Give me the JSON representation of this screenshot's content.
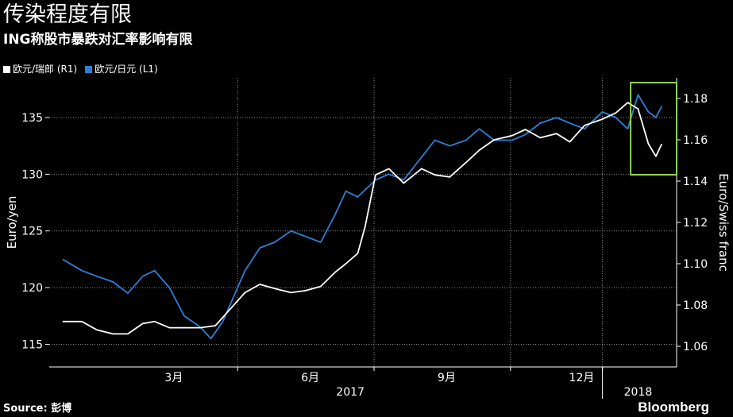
{
  "title": "传染程度有限",
  "subtitle": "ING称股市暴跌对汇率影响有限",
  "source": "Source: 彭博",
  "brand": "Bloomberg",
  "colors": {
    "background": "#000000",
    "chf_series": "#ffffff",
    "jpy_series": "#2e7fd6",
    "highlight_box": "#8fd14f",
    "grid": "#8a8a8a"
  },
  "chart_data": {
    "type": "line",
    "x_ticks": [
      "3月",
      "6月",
      "9月",
      "12月"
    ],
    "year_labels": [
      "2017",
      "2018"
    ],
    "left_axis": {
      "label": "Euro/yen",
      "ticks": [
        115,
        120,
        125,
        130,
        135
      ],
      "range": [
        113,
        138.5
      ]
    },
    "right_axis": {
      "label": "Euro/Swiss franc",
      "ticks": [
        "1.06",
        "1.08",
        "1.10",
        "1.12",
        "1.14",
        "1.16",
        "1.18"
      ],
      "range": [
        1.05,
        1.19
      ]
    },
    "series": [
      {
        "name": "欧元/瑞郎 (R1)",
        "axis": "right",
        "x": [
          "2017-01-02",
          "2017-01-15",
          "2017-01-25",
          "2017-02-05",
          "2017-02-15",
          "2017-02-25",
          "2017-03-05",
          "2017-03-15",
          "2017-03-25",
          "2017-04-05",
          "2017-04-15",
          "2017-04-25",
          "2017-05-05",
          "2017-05-15",
          "2017-05-25",
          "2017-06-05",
          "2017-06-15",
          "2017-06-25",
          "2017-07-05",
          "2017-07-12",
          "2017-07-20",
          "2017-07-25",
          "2017-08-01",
          "2017-08-10",
          "2017-08-20",
          "2017-09-01",
          "2017-09-10",
          "2017-09-20",
          "2017-10-01",
          "2017-10-10",
          "2017-10-20",
          "2017-11-01",
          "2017-11-10",
          "2017-11-20",
          "2017-12-01",
          "2017-12-10",
          "2017-12-20",
          "2018-01-01",
          "2018-01-10",
          "2018-01-18",
          "2018-01-25",
          "2018-02-01",
          "2018-02-06",
          "2018-02-10"
        ],
        "values": [
          1.072,
          1.072,
          1.068,
          1.066,
          1.066,
          1.071,
          1.072,
          1.069,
          1.069,
          1.069,
          1.07,
          1.078,
          1.086,
          1.09,
          1.088,
          1.086,
          1.087,
          1.089,
          1.096,
          1.1,
          1.105,
          1.118,
          1.143,
          1.146,
          1.139,
          1.146,
          1.143,
          1.142,
          1.149,
          1.155,
          1.16,
          1.162,
          1.165,
          1.161,
          1.163,
          1.159,
          1.167,
          1.17,
          1.173,
          1.178,
          1.175,
          1.158,
          1.152,
          1.158
        ]
      },
      {
        "name": "欧元/日元 (L1)",
        "axis": "left",
        "x": [
          "2017-01-02",
          "2017-01-15",
          "2017-01-25",
          "2017-02-05",
          "2017-02-15",
          "2017-02-25",
          "2017-03-05",
          "2017-03-15",
          "2017-03-25",
          "2017-04-05",
          "2017-04-12",
          "2017-04-20",
          "2017-04-25",
          "2017-05-05",
          "2017-05-15",
          "2017-05-25",
          "2017-06-05",
          "2017-06-15",
          "2017-06-25",
          "2017-07-05",
          "2017-07-12",
          "2017-07-20",
          "2017-08-01",
          "2017-08-10",
          "2017-08-20",
          "2017-09-01",
          "2017-09-10",
          "2017-09-20",
          "2017-10-01",
          "2017-10-10",
          "2017-10-20",
          "2017-11-01",
          "2017-11-10",
          "2017-11-20",
          "2017-12-01",
          "2017-12-10",
          "2017-12-20",
          "2018-01-01",
          "2018-01-10",
          "2018-01-18",
          "2018-01-25",
          "2018-02-01",
          "2018-02-06",
          "2018-02-10"
        ],
        "values": [
          122.5,
          121.5,
          121.0,
          120.5,
          119.5,
          121.0,
          121.5,
          120.0,
          117.5,
          116.5,
          115.5,
          117.0,
          118.5,
          121.5,
          123.5,
          124.0,
          125.0,
          124.5,
          124.0,
          126.5,
          128.5,
          128.0,
          129.5,
          130.0,
          129.5,
          131.5,
          133.0,
          132.5,
          133.0,
          134.0,
          133.0,
          133.0,
          133.5,
          134.5,
          135.0,
          134.5,
          134.0,
          135.5,
          135.0,
          134.0,
          137.0,
          135.5,
          135.0,
          136.0
        ]
      }
    ],
    "annotations": [
      {
        "type": "highlight_box",
        "from": "2018-01-20",
        "to": "2018-02-20"
      }
    ]
  }
}
